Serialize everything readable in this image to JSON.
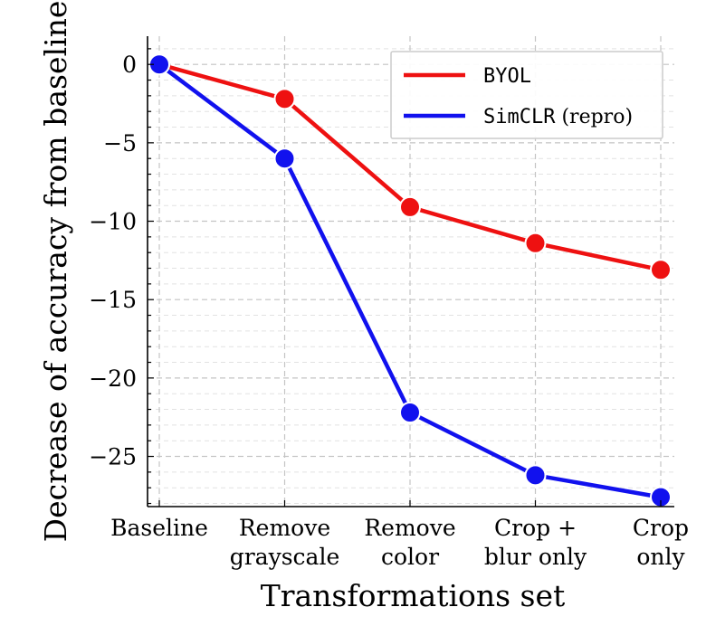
{
  "chart_data": {
    "type": "line",
    "xlabel": "Transformations set",
    "ylabel": "Decrease of accuracy from baseline",
    "categories": [
      [
        "Baseline"
      ],
      [
        "Remove",
        "grayscale"
      ],
      [
        "Remove",
        "color"
      ],
      [
        "Crop +",
        "blur only"
      ],
      [
        "Crop",
        "only"
      ]
    ],
    "ylim": [
      -28.2,
      1.8
    ],
    "yticks": [
      0,
      -5,
      -10,
      -15,
      -20,
      -25
    ],
    "ytick_labels": [
      "0",
      "−5",
      "−10",
      "−15",
      "−20",
      "−25"
    ],
    "grid": true,
    "legend_position": "top-right",
    "series": [
      {
        "name": "BYOL",
        "name_suffix": "",
        "color": "#ee1111",
        "values": [
          0,
          -2.2,
          -9.1,
          -11.4,
          -13.1
        ]
      },
      {
        "name": "SimCLR",
        "name_suffix": "(repro)",
        "color": "#1111ee",
        "values": [
          0,
          -6.0,
          -22.2,
          -26.2,
          -27.6
        ]
      }
    ]
  }
}
